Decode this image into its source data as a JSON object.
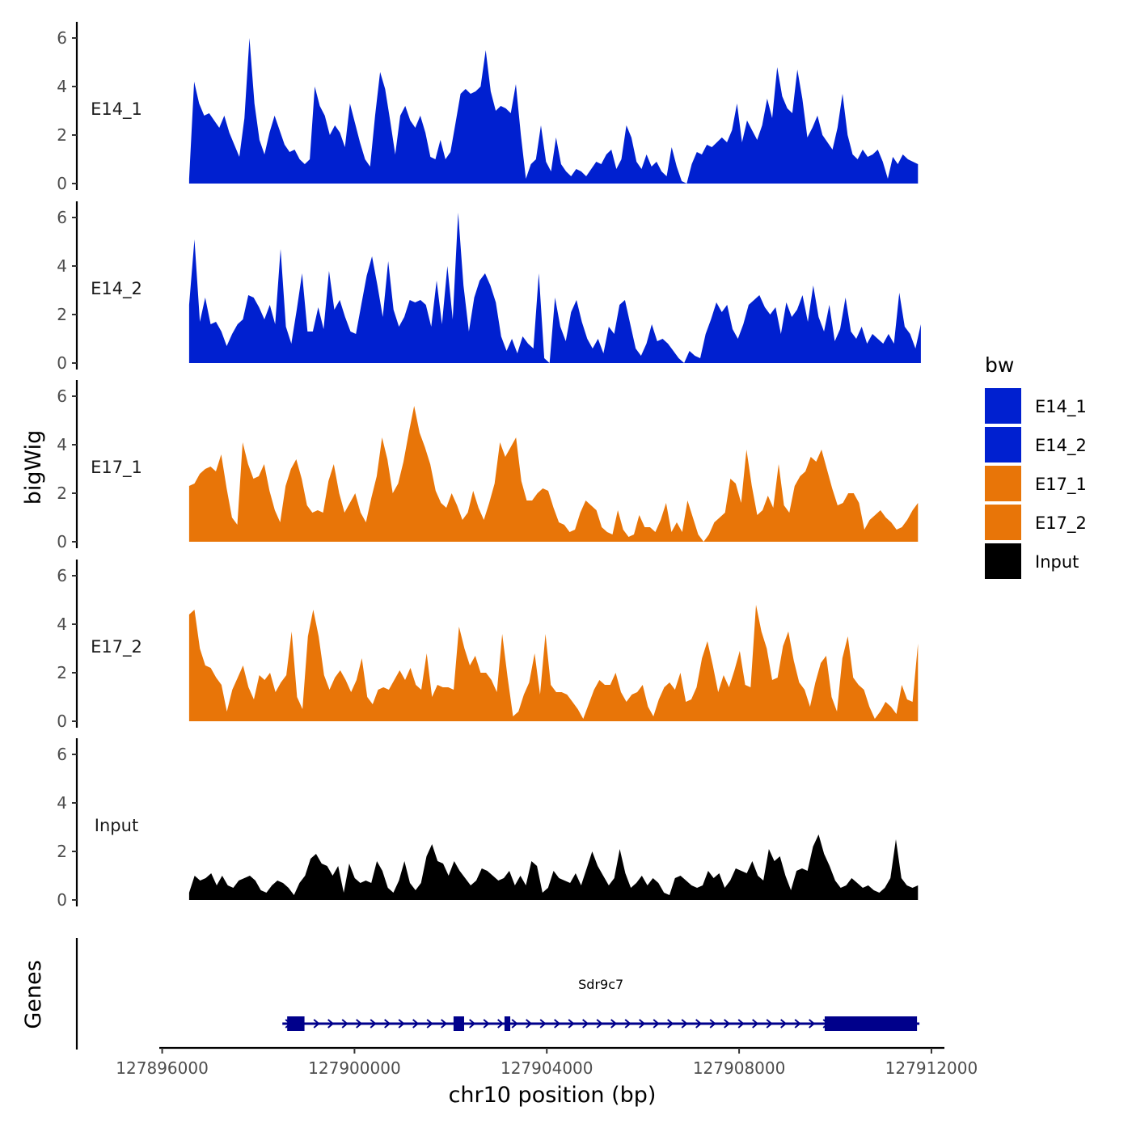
{
  "chart_data": {
    "type": "area",
    "ylabel": "bigWig",
    "xlabel": "chr10 position (bp)",
    "xlim": [
      127895940,
      127912270
    ],
    "ylim": [
      0,
      6.5
    ],
    "yticks": [
      0,
      2,
      4,
      6
    ],
    "xticks": [
      127896000,
      127900000,
      127904000,
      127908000,
      127912000
    ],
    "xtick_labels": [
      "127896000",
      "127900000",
      "127904000",
      "127908000",
      "127912000"
    ],
    "legend": {
      "title": "bw",
      "position": "right",
      "entries": [
        {
          "name": "E14_1",
          "color": "#0020D0"
        },
        {
          "name": "E14_2",
          "color": "#0020D0"
        },
        {
          "name": "E17_1",
          "color": "#E87508"
        },
        {
          "name": "E17_2",
          "color": "#E87508"
        },
        {
          "name": "Input",
          "color": "#000000"
        }
      ]
    },
    "series": [
      {
        "name": "E14_1",
        "color": "#0020D0",
        "x_start": 127896560,
        "x_end": 127911720,
        "values": [
          0.2,
          4.2,
          3.3,
          2.8,
          2.9,
          2.6,
          2.3,
          2.8,
          2.1,
          1.6,
          1.1,
          2.7,
          6.0,
          3.3,
          1.8,
          1.2,
          2.1,
          2.8,
          2.2,
          1.6,
          1.3,
          1.4,
          1.0,
          0.8,
          1.0,
          4.0,
          3.2,
          2.8,
          2.0,
          2.4,
          2.1,
          1.5,
          3.3,
          2.5,
          1.7,
          1.0,
          0.7,
          2.8,
          4.6,
          3.9,
          2.6,
          1.2,
          2.8,
          3.2,
          2.6,
          2.3,
          2.8,
          2.1,
          1.1,
          1.0,
          1.8,
          1.0,
          1.3,
          2.5,
          3.7,
          3.9,
          3.7,
          3.8,
          4.0,
          5.5,
          3.8,
          3.0,
          3.2,
          3.1,
          2.9,
          4.1,
          2.0,
          0.2,
          0.8,
          1.0,
          2.4,
          0.9,
          0.5,
          1.9,
          0.8,
          0.5,
          0.3,
          0.6,
          0.5,
          0.3,
          0.6,
          0.9,
          0.8,
          1.2,
          1.4,
          0.6,
          1.0,
          2.4,
          1.9,
          0.9,
          0.6,
          1.2,
          0.7,
          0.9,
          0.5,
          0.3,
          1.5,
          0.7,
          0.1,
          0.0,
          0.8,
          1.3,
          1.2,
          1.6,
          1.5,
          1.7,
          1.9,
          1.7,
          2.2,
          3.3,
          1.7,
          2.6,
          2.2,
          1.8,
          2.4,
          3.5,
          2.7,
          4.8,
          3.6,
          3.1,
          2.9,
          4.7,
          3.5,
          1.9,
          2.3,
          2.8,
          2.0,
          1.7,
          1.4,
          2.3,
          3.7,
          2.0,
          1.2,
          1.0,
          1.4,
          1.1,
          1.2,
          1.4,
          0.9,
          0.2,
          1.1,
          0.8,
          1.2,
          1.0,
          0.9,
          0.8
        ]
      },
      {
        "name": "E14_2",
        "color": "#0020D0",
        "x_start": 127896560,
        "x_end": 127911780,
        "values": [
          2.4,
          5.1,
          1.7,
          2.7,
          1.6,
          1.7,
          1.3,
          0.7,
          1.2,
          1.6,
          1.8,
          2.8,
          2.7,
          2.3,
          1.8,
          2.4,
          1.6,
          4.7,
          1.5,
          0.8,
          2.2,
          3.7,
          1.3,
          1.3,
          2.3,
          1.4,
          3.8,
          2.2,
          2.6,
          1.9,
          1.3,
          1.2,
          2.4,
          3.6,
          4.4,
          3.2,
          1.9,
          4.2,
          2.2,
          1.5,
          1.9,
          2.6,
          2.5,
          2.6,
          2.4,
          1.5,
          3.4,
          1.6,
          4.0,
          1.8,
          6.2,
          3.2,
          1.3,
          2.7,
          3.4,
          3.7,
          3.2,
          2.5,
          1.1,
          0.5,
          1.0,
          0.4,
          1.1,
          0.8,
          0.6,
          3.7,
          0.2,
          0.0,
          2.7,
          1.5,
          0.9,
          2.1,
          2.6,
          1.7,
          1.0,
          0.6,
          1.0,
          0.4,
          1.5,
          1.2,
          2.4,
          2.6,
          1.6,
          0.6,
          0.3,
          0.8,
          1.6,
          0.9,
          1.0,
          0.8,
          0.5,
          0.2,
          0.0,
          0.5,
          0.3,
          0.2,
          1.2,
          1.8,
          2.5,
          2.1,
          2.4,
          1.4,
          1.0,
          1.6,
          2.4,
          2.6,
          2.8,
          2.3,
          2.0,
          2.3,
          1.2,
          2.5,
          1.9,
          2.2,
          2.8,
          1.7,
          3.2,
          1.9,
          1.3,
          2.4,
          0.9,
          1.4,
          2.7,
          1.3,
          1.0,
          1.5,
          0.8,
          1.2,
          1.0,
          0.8,
          1.2,
          0.8,
          2.9,
          1.5,
          1.2,
          0.6,
          1.6
        ]
      },
      {
        "name": "E17_1",
        "color": "#E87508",
        "x_start": 127896560,
        "x_end": 127911720,
        "values": [
          2.3,
          2.4,
          2.8,
          3.0,
          3.1,
          2.9,
          3.6,
          2.2,
          1.0,
          0.7,
          4.1,
          3.2,
          2.6,
          2.7,
          3.2,
          2.1,
          1.3,
          0.8,
          2.3,
          3.0,
          3.4,
          2.6,
          1.5,
          1.2,
          1.3,
          1.2,
          2.5,
          3.2,
          2.0,
          1.2,
          1.6,
          2.0,
          1.2,
          0.8,
          1.8,
          2.7,
          4.3,
          3.4,
          2.0,
          2.4,
          3.3,
          4.5,
          5.6,
          4.5,
          3.9,
          3.2,
          2.1,
          1.6,
          1.4,
          2.0,
          1.5,
          0.9,
          1.2,
          2.1,
          1.4,
          0.9,
          1.6,
          2.4,
          4.1,
          3.5,
          3.9,
          4.3,
          2.5,
          1.7,
          1.7,
          2.0,
          2.2,
          2.1,
          1.4,
          0.8,
          0.7,
          0.4,
          0.5,
          1.2,
          1.7,
          1.5,
          1.3,
          0.6,
          0.4,
          0.3,
          1.3,
          0.5,
          0.2,
          0.3,
          1.1,
          0.6,
          0.6,
          0.4,
          0.9,
          1.6,
          0.4,
          0.8,
          0.4,
          1.7,
          1.0,
          0.3,
          0.0,
          0.3,
          0.8,
          1.0,
          1.2,
          2.6,
          2.4,
          1.6,
          3.8,
          2.3,
          1.1,
          1.3,
          1.9,
          1.4,
          3.2,
          1.5,
          1.2,
          2.3,
          2.7,
          2.9,
          3.5,
          3.3,
          3.8,
          3.0,
          2.2,
          1.5,
          1.6,
          2.0,
          2.0,
          1.6,
          0.5,
          0.9,
          1.1,
          1.3,
          1.0,
          0.8,
          0.5,
          0.6,
          0.9,
          1.3,
          1.6
        ]
      },
      {
        "name": "E17_2",
        "color": "#E87508",
        "x_start": 127896560,
        "x_end": 127911720,
        "values": [
          4.4,
          4.6,
          3.0,
          2.3,
          2.2,
          1.8,
          1.5,
          0.4,
          1.3,
          1.8,
          2.3,
          1.4,
          0.9,
          1.9,
          1.7,
          2.0,
          1.2,
          1.6,
          1.9,
          3.7,
          1.0,
          0.5,
          3.5,
          4.6,
          3.5,
          1.9,
          1.3,
          1.8,
          2.1,
          1.7,
          1.2,
          1.7,
          2.6,
          1.0,
          0.7,
          1.3,
          1.4,
          1.3,
          1.7,
          2.1,
          1.7,
          2.2,
          1.5,
          1.3,
          2.8,
          1.0,
          1.5,
          1.4,
          1.4,
          1.3,
          3.9,
          3.0,
          2.3,
          2.7,
          2.0,
          2.0,
          1.7,
          1.2,
          3.6,
          1.8,
          0.2,
          0.4,
          1.1,
          1.6,
          2.8,
          1.1,
          3.6,
          1.5,
          1.2,
          1.2,
          1.1,
          0.8,
          0.5,
          0.1,
          0.7,
          1.3,
          1.7,
          1.5,
          1.5,
          2.0,
          1.2,
          0.8,
          1.1,
          1.2,
          1.5,
          0.6,
          0.2,
          0.9,
          1.4,
          1.6,
          1.3,
          2.0,
          0.8,
          0.9,
          1.4,
          2.6,
          3.3,
          2.3,
          1.2,
          1.9,
          1.4,
          2.1,
          2.9,
          1.5,
          1.4,
          4.8,
          3.7,
          3.0,
          1.7,
          1.8,
          3.1,
          3.7,
          2.5,
          1.6,
          1.3,
          0.6,
          1.6,
          2.4,
          2.7,
          1.0,
          0.4,
          2.6,
          3.5,
          1.8,
          1.5,
          1.3,
          0.6,
          0.1,
          0.4,
          0.8,
          0.6,
          0.3,
          1.5,
          0.9,
          0.8,
          3.2
        ]
      },
      {
        "name": "Input",
        "color": "#000000",
        "x_start": 127896560,
        "x_end": 127911720,
        "values": [
          0.3,
          1.0,
          0.8,
          0.9,
          1.1,
          0.6,
          1.0,
          0.6,
          0.5,
          0.8,
          0.9,
          1.0,
          0.8,
          0.4,
          0.3,
          0.6,
          0.8,
          0.7,
          0.5,
          0.2,
          0.7,
          1.0,
          1.7,
          1.9,
          1.5,
          1.4,
          1.0,
          1.4,
          0.3,
          1.5,
          0.9,
          0.7,
          0.8,
          0.7,
          1.6,
          1.2,
          0.5,
          0.3,
          0.8,
          1.6,
          0.7,
          0.4,
          0.7,
          1.8,
          2.3,
          1.6,
          1.5,
          1.0,
          1.6,
          1.2,
          0.9,
          0.6,
          0.8,
          1.3,
          1.2,
          1.0,
          0.8,
          0.9,
          1.2,
          0.6,
          1.0,
          0.6,
          1.6,
          1.4,
          0.3,
          0.5,
          1.2,
          0.9,
          0.8,
          0.7,
          1.1,
          0.6,
          1.3,
          2.0,
          1.4,
          1.0,
          0.6,
          0.9,
          2.1,
          1.1,
          0.5,
          0.7,
          1.0,
          0.6,
          0.9,
          0.7,
          0.3,
          0.2,
          0.9,
          1.0,
          0.8,
          0.6,
          0.5,
          0.6,
          1.2,
          0.9,
          1.1,
          0.5,
          0.8,
          1.3,
          1.2,
          1.1,
          1.6,
          1.0,
          0.8,
          2.1,
          1.6,
          1.8,
          1.0,
          0.4,
          1.2,
          1.3,
          1.2,
          2.2,
          2.7,
          1.9,
          1.4,
          0.8,
          0.5,
          0.6,
          0.9,
          0.7,
          0.5,
          0.6,
          0.4,
          0.3,
          0.5,
          0.9,
          2.5,
          0.9,
          0.6,
          0.5,
          0.6
        ]
      }
    ],
    "genes_track": {
      "label": "Genes",
      "gene": "Sdr9c7",
      "strand": "+",
      "start": 127898500,
      "end": 127911750,
      "exons": [
        [
          127898600,
          127898960
        ],
        [
          127902060,
          127902280
        ],
        [
          127903120,
          127903240
        ],
        [
          127909780,
          127911700
        ]
      ],
      "color": "#00008B"
    }
  }
}
